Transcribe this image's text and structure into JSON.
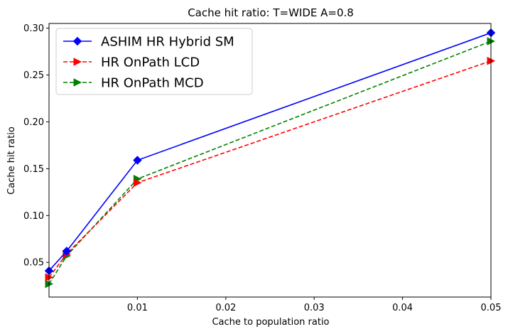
{
  "chart_data": {
    "type": "line",
    "title": "Cache hit ratio: T=WIDE A=0.8",
    "xlabel": "Cache to population ratio",
    "ylabel": "Cache hit ratio",
    "x": [
      0.0,
      0.002,
      0.01,
      0.05
    ],
    "xlim": [
      0.0,
      0.05
    ],
    "ylim": [
      0.013,
      0.305
    ],
    "xticks": [
      0.01,
      0.02,
      0.03,
      0.04,
      0.05
    ],
    "xtick_labels": [
      "0.01",
      "0.02",
      "0.03",
      "0.04",
      "0.05"
    ],
    "yticks": [
      0.05,
      0.1,
      0.15,
      0.2,
      0.25,
      0.3
    ],
    "ytick_labels": [
      "0.05",
      "0.10",
      "0.15",
      "0.20",
      "0.25",
      "0.30"
    ],
    "grid": false,
    "legend_position": "top-left",
    "series": [
      {
        "name": "ASHIM HR Hybrid SM",
        "values": [
          0.041,
          0.062,
          0.159,
          0.295
        ],
        "color": "#0000ff",
        "line_style": "solid",
        "marker": "diamond"
      },
      {
        "name": "HR OnPath LCD",
        "values": [
          0.034,
          0.059,
          0.135,
          0.265
        ],
        "color": "#ff0000",
        "line_style": "dashed",
        "marker": "triangle-right"
      },
      {
        "name": "HR OnPath MCD",
        "values": [
          0.027,
          0.057,
          0.139,
          0.286
        ],
        "color": "#008000",
        "line_style": "dashed",
        "marker": "triangle-right"
      }
    ]
  }
}
